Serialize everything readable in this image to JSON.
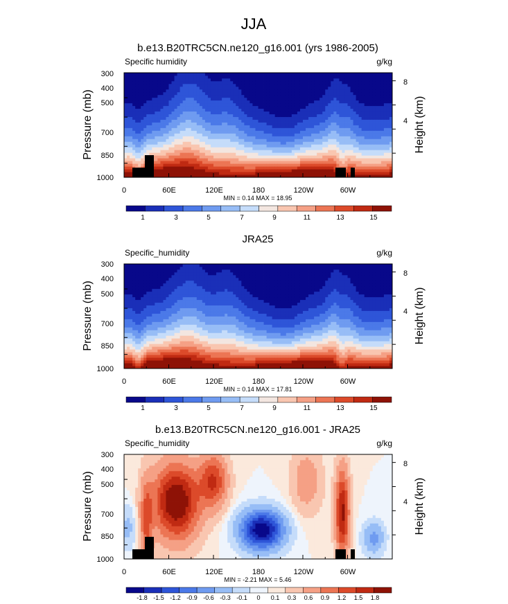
{
  "figure": {
    "title": "JJA"
  },
  "colors": {
    "palette": [
      "#08088a",
      "#1a2fb8",
      "#2e55d8",
      "#4b79e8",
      "#6f9bf0",
      "#97bdf6",
      "#c5dcfa",
      "#f3e6e0",
      "#f9c6b0",
      "#f5a085",
      "#ec7554",
      "#dc4a2a",
      "#c02a12",
      "#8e1206"
    ],
    "diff_palette": [
      "#08088a",
      "#1a2fb8",
      "#2e55d8",
      "#4b79e8",
      "#6f9bf0",
      "#97bdf6",
      "#c5dcfa",
      "#eef4fc",
      "#fbe9dc",
      "#f9c6b0",
      "#f5a085",
      "#ec7554",
      "#dc4a2a",
      "#c02a12",
      "#8e1206"
    ],
    "land_mask": "#000000"
  },
  "chart_data": [
    {
      "type": "heatmap",
      "title": "b.e13.B20TRC5CN.ne120_g16.001 (yrs 1986-2005)",
      "left_label": "Specific humidity",
      "units": "g/kg",
      "ylabel": "Pressure (mb)",
      "ylabel_right": "Height (km)",
      "y_ticks": [
        "300",
        "400",
        "500",
        "700",
        "850",
        "1000"
      ],
      "y_right_ticks": [
        "8",
        "4"
      ],
      "x_ticks": [
        "0",
        "60E",
        "120E",
        "180",
        "120W",
        "60W"
      ],
      "stats": "MIN =  0.14  MAX =  18.95",
      "colorbar_labels": [
        "1",
        "3",
        "5",
        "7",
        "9",
        "11",
        "13",
        "15"
      ],
      "levels": [
        1,
        2,
        3,
        4,
        5,
        6,
        7,
        8,
        9,
        10,
        11,
        12,
        13,
        14,
        15
      ],
      "pressure_levels": [
        1000,
        850,
        700,
        500,
        400,
        300
      ],
      "profile": "model"
    },
    {
      "type": "heatmap",
      "title": "JRA25",
      "left_label": "Specific_humidity",
      "units": "g/kg",
      "ylabel": "Pressure (mb)",
      "ylabel_right": "Height (km)",
      "y_ticks": [
        "300",
        "400",
        "500",
        "700",
        "850",
        "1000"
      ],
      "y_right_ticks": [
        "8",
        "4"
      ],
      "x_ticks": [
        "0",
        "60E",
        "120E",
        "180",
        "120W",
        "60W"
      ],
      "stats": "MIN =  0.14  MAX =  17.81",
      "colorbar_labels": [
        "1",
        "3",
        "5",
        "7",
        "9",
        "11",
        "13",
        "15"
      ],
      "levels": [
        1,
        2,
        3,
        4,
        5,
        6,
        7,
        8,
        9,
        10,
        11,
        12,
        13,
        14,
        15
      ],
      "pressure_levels": [
        1000,
        850,
        700,
        500,
        400,
        300
      ],
      "profile": "obs"
    },
    {
      "type": "heatmap",
      "title": "b.e13.B20TRC5CN.ne120_g16.001 - JRA25",
      "left_label": "Specific_humidity",
      "units": "g/kg",
      "ylabel": "Pressure (mb)",
      "ylabel_right": "Height (km)",
      "y_ticks": [
        "300",
        "400",
        "500",
        "700",
        "850",
        "1000"
      ],
      "y_right_ticks": [
        "8",
        "4"
      ],
      "x_ticks": [
        "0",
        "60E",
        "120E",
        "180",
        "120W",
        "60W"
      ],
      "stats": "MIN = -2.21  MAX =  5.46",
      "colorbar_labels": [
        "-1.8",
        "-1.5",
        "-1.2",
        "-0.9",
        "-0.6",
        "-0.3",
        "-0.1",
        "0",
        "0.1",
        "0.3",
        "0.6",
        "0.9",
        "1.2",
        "1.5",
        "1.8"
      ],
      "levels": [
        -1.8,
        -1.5,
        -1.2,
        -0.9,
        -0.6,
        -0.3,
        -0.1,
        0,
        0.1,
        0.3,
        0.6,
        0.9,
        1.2,
        1.5,
        1.8
      ],
      "pressure_levels": [
        1000,
        850,
        700,
        500,
        400,
        300
      ],
      "profile": "diff"
    }
  ]
}
